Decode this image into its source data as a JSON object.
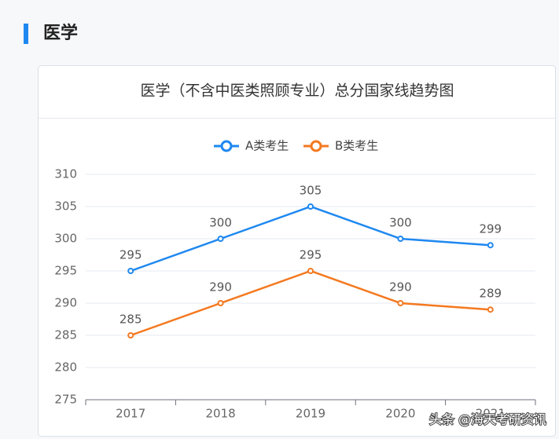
{
  "section_title": "医学",
  "chart_data": {
    "type": "line",
    "title": "医学（不含中医类照顾专业）总分国家线趋势图",
    "categories": [
      "2017",
      "2018",
      "2019",
      "2020",
      "2021"
    ],
    "series": [
      {
        "name": "A类考生",
        "color": "#1e88f0",
        "values": [
          295,
          300,
          305,
          300,
          299
        ]
      },
      {
        "name": "B类考生",
        "color": "#f47920",
        "values": [
          285,
          290,
          295,
          290,
          289
        ]
      }
    ],
    "ylim": [
      275,
      310
    ],
    "yticks": [
      275,
      280,
      285,
      290,
      295,
      300,
      305,
      310
    ],
    "grid": true,
    "legend": "top"
  },
  "watermark": "头条 @海天考研资讯"
}
